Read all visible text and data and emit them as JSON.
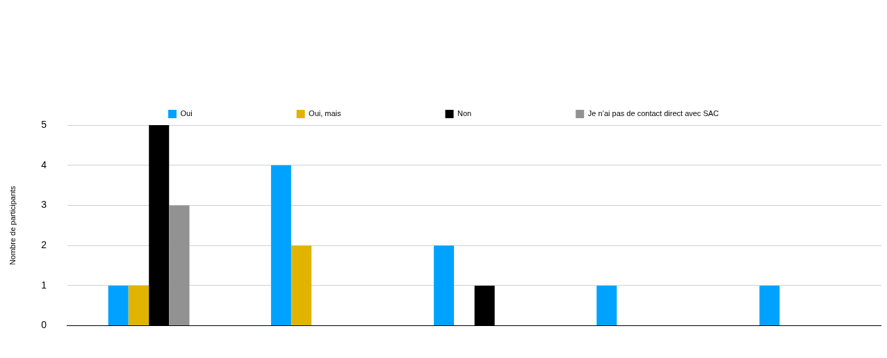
{
  "chart_data": {
    "type": "bar",
    "ylabel": "Nombre de participants",
    "categories": [
      null,
      null,
      null,
      null,
      null
    ],
    "series": [
      {
        "name": "Oui",
        "color": "#00a2ff",
        "values": [
          1,
          4,
          2,
          1,
          1
        ]
      },
      {
        "name": "Oui, mais",
        "color": "#e0b400",
        "values": [
          1,
          2,
          0,
          0,
          0
        ]
      },
      {
        "name": "Non",
        "color": "#000000",
        "values": [
          5,
          0,
          1,
          0,
          0
        ]
      },
      {
        "name": "Je n’ai pas de contact direct avec SAC",
        "color": "#929292",
        "values": [
          3,
          0,
          0,
          0,
          0
        ]
      }
    ],
    "ylim": [
      0,
      5
    ],
    "yticks": [
      0,
      1,
      2,
      3,
      4,
      5
    ],
    "grid": "y",
    "legend": "top"
  }
}
